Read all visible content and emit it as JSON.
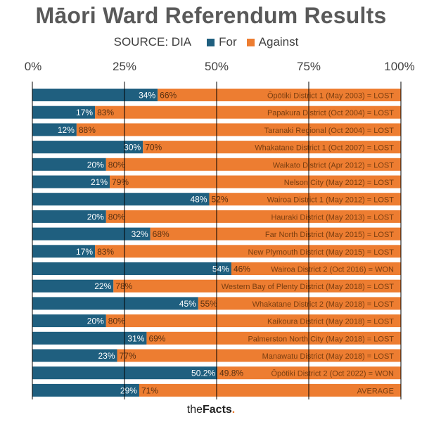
{
  "header": {
    "title": "Māori Ward Referendum Results",
    "source": "SOURCE: DIA"
  },
  "brand": {
    "the": "the",
    "facts": "Facts",
    "dot": "."
  },
  "colors": {
    "for": "#1F5F7F",
    "against": "#ED7D31",
    "grid": "#000000"
  },
  "chart_data": {
    "type": "bar",
    "orientation": "horizontal",
    "stacked": true,
    "percent_stacked": true,
    "title": "Māori Ward Referendum Results",
    "xlim": [
      0,
      100
    ],
    "x_ticks": [
      "0%",
      "25%",
      "50%",
      "75%",
      "100%"
    ],
    "legend": {
      "placement": "top",
      "entries": [
        "For",
        "Against"
      ]
    },
    "grid": true,
    "categories": [
      "Ōpōtiki District 1 (May 2003) = LOST",
      "Papakura District (Oct 2004) = LOST",
      "Taranaki Regional (Oct 2004) = LOST",
      "Whakatane District 1 (Oct 2007) = LOST",
      "Waikato District (Apr 2012) = LOST",
      "Nelson City (May 2012) = LOST",
      "Wairoa District 1 (May 2012) = LOST",
      "Hauraki District (May 2013) = LOST",
      "Far North District (May 2015) = LOST",
      "New Plymouth District (May 2015) = LOST",
      "Wairoa District 2 (Oct 2016) = WON",
      "Western Bay of Plenty District (May 2018) = LOST",
      "Whakatane District 2 (May 2018) = LOST",
      "Kaikoura District (May 2018) = LOST",
      "Palmerston North City (May 2018) = LOST",
      "Manawatu District (May 2018) = LOST",
      "Ōpōtiki District 2 (Oct 2022) = WON",
      "AVERAGE"
    ],
    "series": [
      {
        "name": "For",
        "values": [
          34,
          17,
          12,
          30,
          20,
          21,
          48,
          20,
          32,
          17,
          54,
          22,
          45,
          20,
          31,
          23,
          50.2,
          29
        ],
        "labels": [
          "34%",
          "17%",
          "12%",
          "30%",
          "20%",
          "21%",
          "48%",
          "20%",
          "32%",
          "17%",
          "54%",
          "22%",
          "45%",
          "20%",
          "31%",
          "23%",
          "50.2%",
          "29%"
        ]
      },
      {
        "name": "Against",
        "values": [
          66,
          83,
          88,
          70,
          80,
          79,
          52,
          80,
          68,
          83,
          46,
          78,
          55,
          80,
          69,
          77,
          49.8,
          71
        ],
        "labels": [
          "66%",
          "83%",
          "88%",
          "70%",
          "80%",
          "79%",
          "52%",
          "80%",
          "68%",
          "83%",
          "46%",
          "78%",
          "55%",
          "80%",
          "69%",
          "77%",
          "49.8%",
          "71%"
        ]
      }
    ]
  }
}
